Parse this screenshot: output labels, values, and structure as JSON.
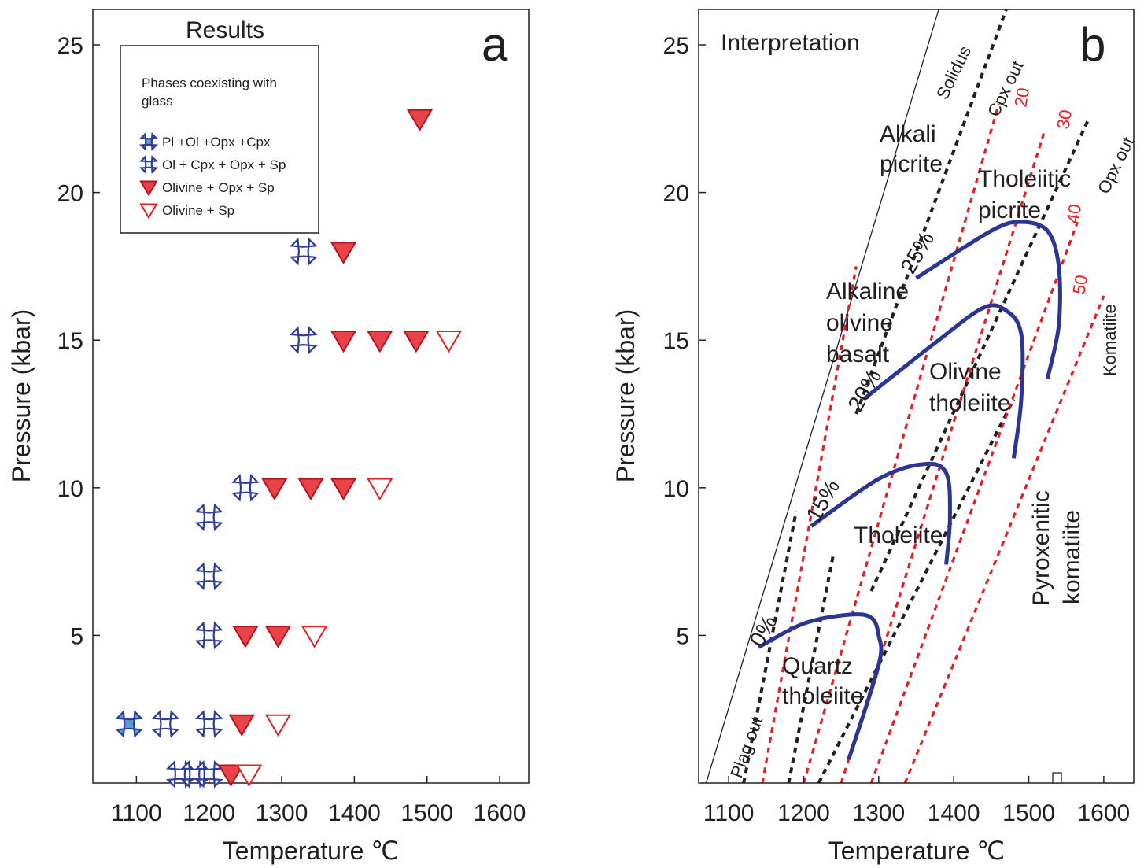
{
  "chart_data": [
    {
      "type": "scatter",
      "panel_letter": "a",
      "title": "Results",
      "xlabel": "Temperature ℃",
      "ylabel": "Pressure (kbar)",
      "xlim": [
        1040,
        1640
      ],
      "ylim": [
        0,
        26.2
      ],
      "xticks": [
        "1100",
        "1200",
        "1300",
        "1400",
        "1500",
        "1600"
      ],
      "yticks": [
        "5",
        "10",
        "15",
        "20",
        "25"
      ],
      "grid": false,
      "legend": {
        "position": "top-left",
        "heading": "Phases coexisting with glass",
        "entries": [
          {
            "key": "plolopxcpx",
            "label": "Pl +Ol +Opx +Cpx",
            "color": "#5a9bd5"
          },
          {
            "key": "olcpxopxsp",
            "label": "Ol + Cpx + Opx + Sp",
            "color": "#2e3d98"
          },
          {
            "key": "olopxsp",
            "label": "Olivine + Opx + Sp",
            "color": "#e31e24"
          },
          {
            "key": "olsp",
            "label": "Olivine + Sp",
            "color": "#e31e24"
          }
        ]
      },
      "series": [
        {
          "key": "plolopxcpx",
          "points": [
            [
              1090,
              2.0
            ]
          ]
        },
        {
          "key": "olcpxopxsp",
          "points": [
            [
              1140,
              2.0
            ],
            [
              1200,
              2.0
            ],
            [
              1160,
              0.3
            ],
            [
              1180,
              0.3
            ],
            [
              1200,
              0.3
            ],
            [
              1200,
              5.0
            ],
            [
              1200,
              7.0
            ],
            [
              1200,
              9.0
            ],
            [
              1250,
              10.0
            ],
            [
              1330,
              15.0
            ],
            [
              1330,
              18.0
            ]
          ]
        },
        {
          "key": "olopxsp",
          "points": [
            [
              1230,
              0.3
            ],
            [
              1245,
              2.0
            ],
            [
              1250,
              5.0
            ],
            [
              1295,
              5.0
            ],
            [
              1290,
              10.0
            ],
            [
              1340,
              10.0
            ],
            [
              1385,
              10.0
            ],
            [
              1385,
              15.0
            ],
            [
              1435,
              15.0
            ],
            [
              1485,
              15.0
            ],
            [
              1385,
              18.0
            ],
            [
              1490,
              22.5
            ]
          ]
        },
        {
          "key": "olsp",
          "points": [
            [
              1255,
              0.3
            ],
            [
              1295,
              2.0
            ],
            [
              1345,
              5.0
            ],
            [
              1435,
              10.0
            ],
            [
              1530,
              15.0
            ]
          ]
        }
      ]
    },
    {
      "type": "line",
      "panel_letter": "b",
      "title": "Interpretation",
      "xlabel": "Temperature ℃",
      "ylabel": "Pressure (kbar)",
      "xlim": [
        1060,
        1640
      ],
      "ylim": [
        0,
        26.2
      ],
      "xticks": [
        "1100",
        "1200",
        "1300",
        "1400",
        "1500",
        "1600"
      ],
      "yticks": [
        "5",
        "10",
        "15",
        "20",
        "25"
      ],
      "grid": false,
      "boundaries": [
        {
          "label": "Solidus",
          "color": "#231f20",
          "style": "solid",
          "points": [
            [
              1070,
              0
            ],
            [
              1380,
              26.2
            ]
          ]
        },
        {
          "label": "Plag out",
          "color": "#231f20",
          "style": "dashed",
          "points": [
            [
              1120,
              0
            ],
            [
              1190,
              9.2
            ]
          ]
        },
        {
          "label": "",
          "color": "#231f20",
          "style": "dashed",
          "points": [
            [
              1180,
              0
            ],
            [
              1240,
              7.8
            ]
          ]
        },
        {
          "label": "Cpx out",
          "color": "#231f20",
          "style": "dashed",
          "points": [
            [
              1220,
              0
            ],
            [
              1480,
              13.0
            ]
          ]
        },
        {
          "label": "",
          "color": "#231f20",
          "style": "dashed",
          "points": [
            [
              1270,
              12.5
            ],
            [
              1470,
              26.2
            ]
          ]
        },
        {
          "label": "Opx out",
          "color": "#231f20",
          "style": "dashed",
          "points": [
            [
              1290,
              6.5
            ],
            [
              1580,
              22.5
            ]
          ]
        }
      ],
      "melt_lines": [
        {
          "label": "",
          "points": [
            [
              1145,
              0
            ],
            [
              1270,
              17.5
            ]
          ]
        },
        {
          "label": "20",
          "points": [
            [
              1200,
              0
            ],
            [
              1460,
              23.0
            ]
          ]
        },
        {
          "label": "30",
          "points": [
            [
              1250,
              0
            ],
            [
              1520,
              22.0
            ]
          ]
        },
        {
          "label": "40",
          "points": [
            [
              1290,
              0
            ],
            [
              1565,
              19.0
            ]
          ]
        },
        {
          "label": "50",
          "points": [
            [
              1335,
              0
            ],
            [
              1600,
              16.5
            ]
          ]
        }
      ],
      "melt_curves": [
        {
          "label": "0%",
          "points": [
            [
              1140,
              4.6
            ],
            [
              1200,
              5.4
            ],
            [
              1260,
              5.7
            ],
            [
              1290,
              5.6
            ],
            [
              1300,
              5.0
            ],
            [
              1300,
              4.0
            ],
            [
              1260,
              0.8
            ]
          ]
        },
        {
          "label": "15%",
          "points": [
            [
              1210,
              8.7
            ],
            [
              1300,
              10.3
            ],
            [
              1360,
              10.8
            ],
            [
              1390,
              10.5
            ],
            [
              1395,
              9.0
            ],
            [
              1390,
              7.4
            ]
          ]
        },
        {
          "label": "20%",
          "points": [
            [
              1280,
              13.0
            ],
            [
              1380,
              15.0
            ],
            [
              1440,
              16.1
            ],
            [
              1470,
              16.0
            ],
            [
              1490,
              15.2
            ],
            [
              1490,
              13.0
            ],
            [
              1480,
              11.0
            ]
          ]
        },
        {
          "label": "25%",
          "points": [
            [
              1350,
              17.1
            ],
            [
              1450,
              18.7
            ],
            [
              1490,
              19.0
            ],
            [
              1525,
              18.7
            ],
            [
              1540,
              17.5
            ],
            [
              1540,
              15.5
            ],
            [
              1525,
              13.7
            ]
          ]
        }
      ],
      "regions": [
        {
          "lines": [
            "Alkali",
            "picrite"
          ]
        },
        {
          "lines": [
            "Tholeiitic",
            "picrite"
          ]
        },
        {
          "lines": [
            "Alkaline",
            "olivine",
            "basalt"
          ]
        },
        {
          "lines": [
            "Olivine",
            "tholeiite"
          ]
        },
        {
          "lines": [
            "Tholeiite"
          ]
        },
        {
          "lines": [
            "Quartz",
            "tholeiite"
          ]
        },
        {
          "lines": [
            "Pyroxenitic",
            "komatiite"
          ]
        },
        {
          "lines": [
            "Komatiite"
          ]
        }
      ]
    }
  ]
}
